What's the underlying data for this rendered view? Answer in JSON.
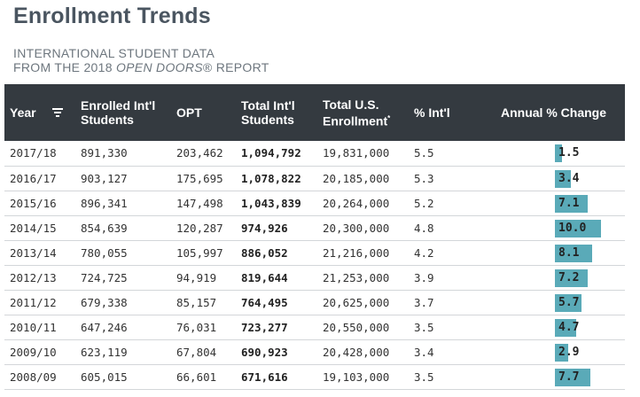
{
  "title": "Enrollment Trends",
  "subtitle": {
    "line1": "INTERNATIONAL STUDENT DATA",
    "line2_prefix": "FROM THE 2018 ",
    "line2_italic": "OPEN DOORS",
    "line2_suffix": "® REPORT"
  },
  "table": {
    "headers": {
      "year": "Year",
      "enrolled_line1": "Enrolled Int'l",
      "enrolled_line2": "Students",
      "opt": "OPT",
      "total_intl_line1": "Total Int'l",
      "total_intl_line2": "Students",
      "total_us_line1": "Total U.S.",
      "total_us_line2": "Enrollment",
      "total_us_mark": "*",
      "pct_intl": "% Int'l",
      "annual_change": "Annual % Change"
    },
    "icons": {
      "sort": "sort-filter-icon"
    },
    "bar_color": "#5aaab8",
    "rows": [
      {
        "year": "2017/18",
        "enrolled": "891,330",
        "opt": "203,462",
        "total_intl": "1,094,792",
        "total_us": "19,831,000",
        "pct_intl": "5.5",
        "change": 1.5,
        "change_label": "1.5"
      },
      {
        "year": "2016/17",
        "enrolled": "903,127",
        "opt": "175,695",
        "total_intl": "1,078,822",
        "total_us": "20,185,000",
        "pct_intl": "5.3",
        "change": 3.4,
        "change_label": "3.4"
      },
      {
        "year": "2015/16",
        "enrolled": "896,341",
        "opt": "147,498",
        "total_intl": "1,043,839",
        "total_us": "20,264,000",
        "pct_intl": "5.2",
        "change": 7.1,
        "change_label": "7.1"
      },
      {
        "year": "2014/15",
        "enrolled": "854,639",
        "opt": "120,287",
        "total_intl": "974,926",
        "total_us": "20,300,000",
        "pct_intl": "4.8",
        "change": 10.0,
        "change_label": "10.0"
      },
      {
        "year": "2013/14",
        "enrolled": "780,055",
        "opt": "105,997",
        "total_intl": "886,052",
        "total_us": "21,216,000",
        "pct_intl": "4.2",
        "change": 8.1,
        "change_label": "8.1"
      },
      {
        "year": "2012/13",
        "enrolled": "724,725",
        "opt": "94,919",
        "total_intl": "819,644",
        "total_us": "21,253,000",
        "pct_intl": "3.9",
        "change": 7.2,
        "change_label": "7.2"
      },
      {
        "year": "2011/12",
        "enrolled": "679,338",
        "opt": "85,157",
        "total_intl": "764,495",
        "total_us": "20,625,000",
        "pct_intl": "3.7",
        "change": 5.7,
        "change_label": "5.7"
      },
      {
        "year": "2010/11",
        "enrolled": "647,246",
        "opt": "76,031",
        "total_intl": "723,277",
        "total_us": "20,550,000",
        "pct_intl": "3.5",
        "change": 4.7,
        "change_label": "4.7"
      },
      {
        "year": "2009/10",
        "enrolled": "623,119",
        "opt": "67,804",
        "total_intl": "690,923",
        "total_us": "20,428,000",
        "pct_intl": "3.4",
        "change": 2.9,
        "change_label": "2.9"
      },
      {
        "year": "2008/09",
        "enrolled": "605,015",
        "opt": "66,601",
        "total_intl": "671,616",
        "total_us": "19,103,000",
        "pct_intl": "3.5",
        "change": 7.7,
        "change_label": "7.7"
      }
    ]
  }
}
